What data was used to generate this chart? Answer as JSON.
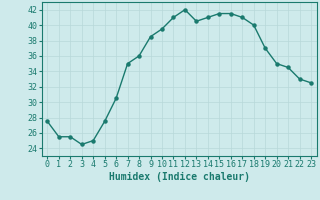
{
  "x": [
    0,
    1,
    2,
    3,
    4,
    5,
    6,
    7,
    8,
    9,
    10,
    11,
    12,
    13,
    14,
    15,
    16,
    17,
    18,
    19,
    20,
    21,
    22,
    23
  ],
  "y": [
    27.5,
    25.5,
    25.5,
    24.5,
    25.0,
    27.5,
    30.5,
    35.0,
    36.0,
    38.5,
    39.5,
    41.0,
    42.0,
    40.5,
    41.0,
    41.5,
    41.5,
    41.0,
    40.0,
    37.0,
    35.0,
    34.5,
    33.0,
    32.5
  ],
  "line_color": "#1a7a6e",
  "marker": "o",
  "markersize": 2.2,
  "linewidth": 1.0,
  "xlabel": "Humidex (Indice chaleur)",
  "ylabel": "",
  "xlim": [
    -0.5,
    23.5
  ],
  "ylim": [
    23,
    43
  ],
  "yticks": [
    24,
    26,
    28,
    30,
    32,
    34,
    36,
    38,
    40,
    42
  ],
  "xticks": [
    0,
    1,
    2,
    3,
    4,
    5,
    6,
    7,
    8,
    9,
    10,
    11,
    12,
    13,
    14,
    15,
    16,
    17,
    18,
    19,
    20,
    21,
    22,
    23
  ],
  "bg_color": "#ceeaeb",
  "grid_color": "#b8d8d9",
  "label_fontsize": 7.0,
  "tick_fontsize": 6.0
}
